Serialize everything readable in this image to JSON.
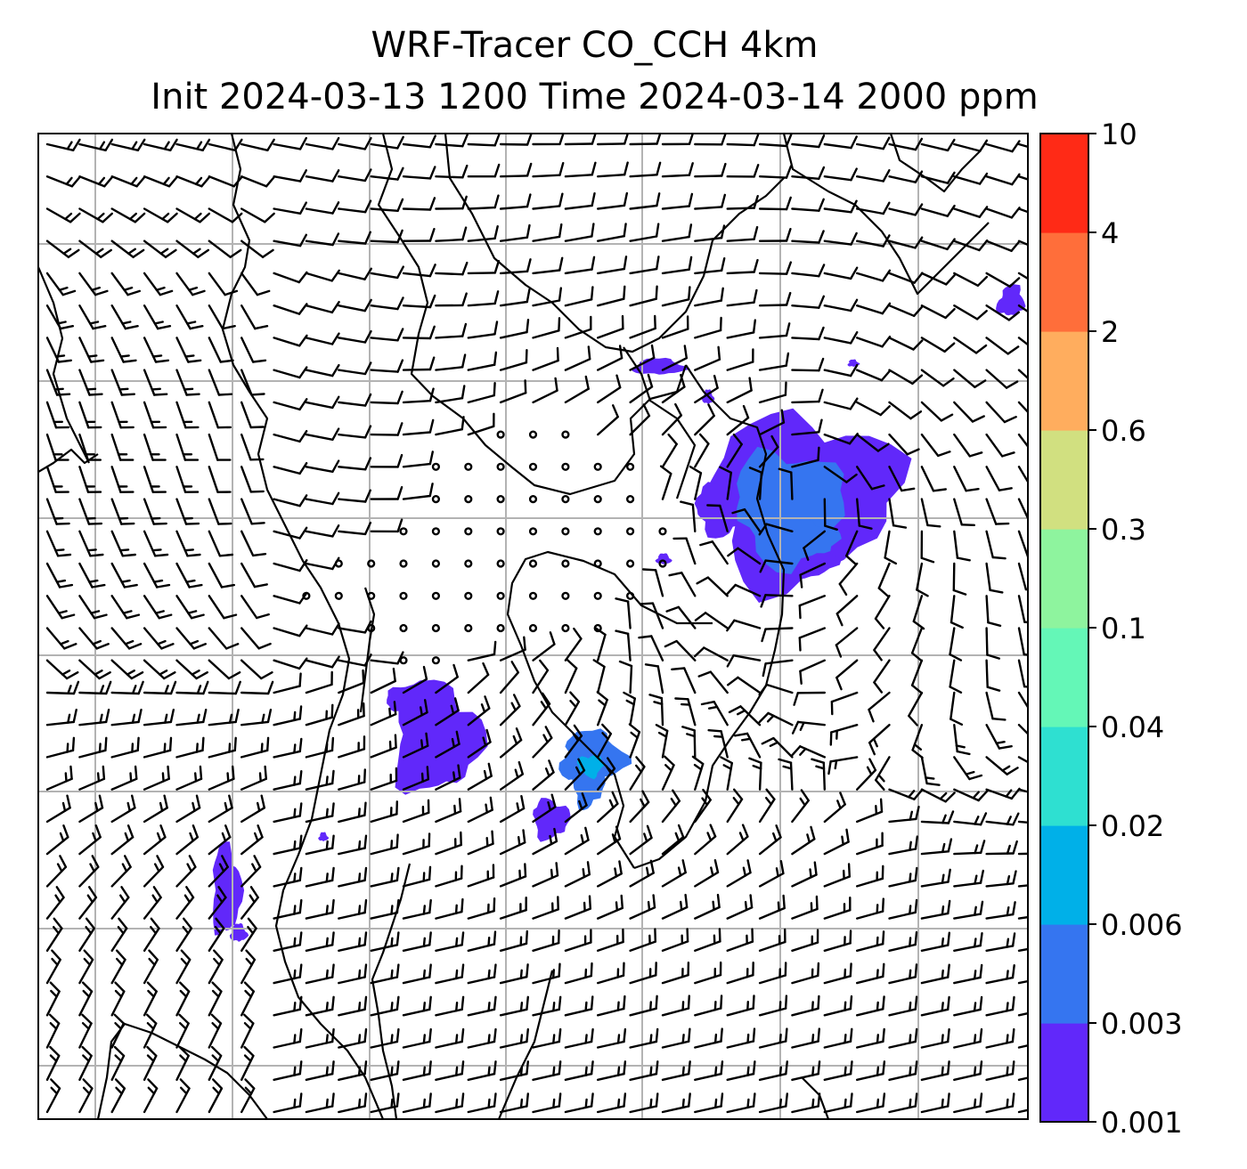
{
  "chart_data": {
    "type": "heatmap",
    "title": "WRF-Tracer CO_CCH 4km",
    "subtitle": "Init 2024-03-13 1200 Time 2024-03-14 2000 ppm",
    "xlabel": "",
    "ylabel": "",
    "grid": true,
    "colorbar": {
      "placement": "right",
      "levels": [
        "0.001",
        "0.003",
        "0.006",
        "0.02",
        "0.04",
        "0.1",
        "0.3",
        "0.6",
        "2",
        "4",
        "10"
      ],
      "colors": [
        "#6128fa",
        "#3575f0",
        "#00b0e8",
        "#2ee0d1",
        "#64f7b7",
        "#8ef49e",
        "#d1e080",
        "#ffad5e",
        "#ff6e3a",
        "#ff2a16"
      ]
    },
    "grid_lines": {
      "vertical": 7,
      "horizontal": 7
    },
    "tracer_regions": [
      {
        "name": "north-east plume",
        "max_level": "0.006"
      },
      {
        "name": "central plume",
        "max_level": "0.003"
      },
      {
        "name": "southern plume",
        "max_level": "0.006"
      },
      {
        "name": "far-east patch",
        "max_level": "0.003"
      },
      {
        "name": "south-west strip",
        "max_level": "0.003"
      }
    ],
    "overlays": [
      "wind barbs",
      "coastlines",
      "calm-wind circles"
    ]
  }
}
